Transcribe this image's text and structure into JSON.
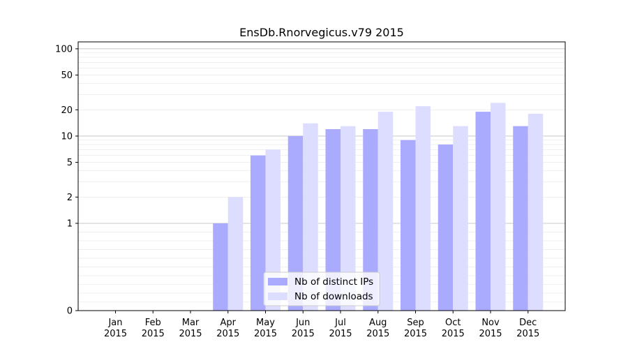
{
  "chart_data": {
    "type": "bar",
    "title": "EnsDb.Rnorvegicus.v79 2015",
    "xlabel": "",
    "ylabel": "",
    "yscale": "symlog",
    "ylim": [
      0,
      120
    ],
    "yticks": [
      0,
      1,
      2,
      5,
      10,
      20,
      50,
      100
    ],
    "categories": [
      [
        "Jan",
        "2015"
      ],
      [
        "Feb",
        "2015"
      ],
      [
        "Mar",
        "2015"
      ],
      [
        "Apr",
        "2015"
      ],
      [
        "May",
        "2015"
      ],
      [
        "Jun",
        "2015"
      ],
      [
        "Jul",
        "2015"
      ],
      [
        "Aug",
        "2015"
      ],
      [
        "Sep",
        "2015"
      ],
      [
        "Oct",
        "2015"
      ],
      [
        "Nov",
        "2015"
      ],
      [
        "Dec",
        "2015"
      ]
    ],
    "series": [
      {
        "name": "Nb of distinct IPs",
        "color": "#aaaaff",
        "values": [
          0,
          0,
          0,
          1,
          6,
          10,
          12,
          12,
          9,
          8,
          19,
          13
        ]
      },
      {
        "name": "Nb of downloads",
        "color": "#ddddff",
        "values": [
          0,
          0,
          0,
          2,
          7,
          14,
          13,
          19,
          22,
          13,
          24,
          18
        ]
      }
    ],
    "legend": "lower-center",
    "grid": "horizontal"
  }
}
